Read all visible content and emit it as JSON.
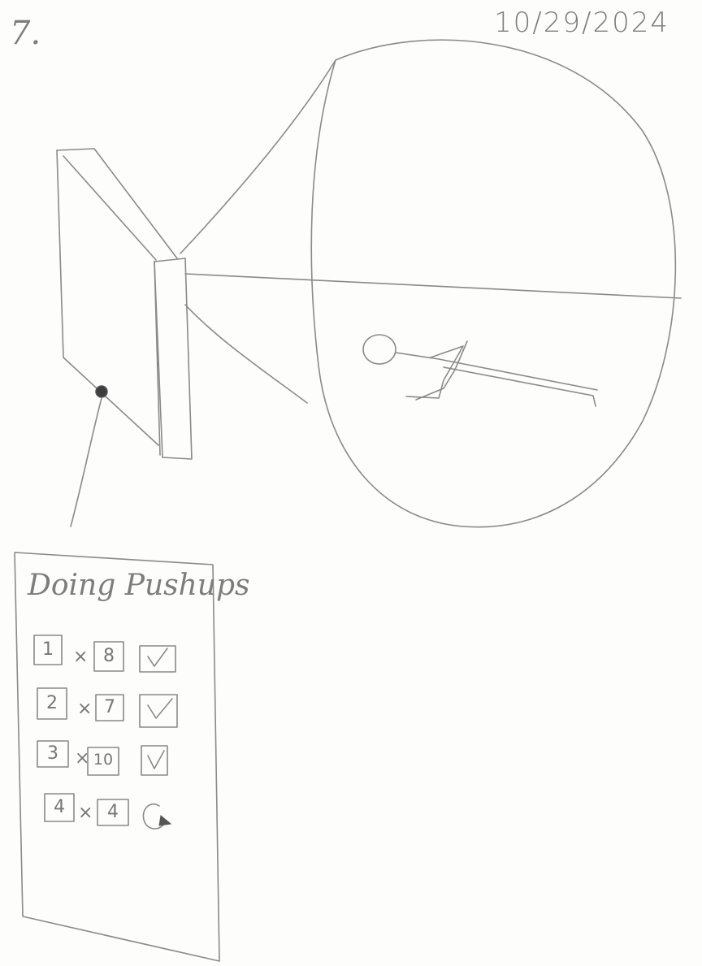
{
  "page_number": "7.",
  "date": "10/29/2024",
  "panel": {
    "title": "Doing Pushups",
    "rows": [
      {
        "set": "1",
        "times": "×",
        "reps": "8",
        "status_icon": "checkmark-icon"
      },
      {
        "set": "2",
        "times": "×",
        "reps": "7",
        "status_icon": "checkmark-icon"
      },
      {
        "set": "3",
        "times": "×",
        "reps": "10",
        "status_icon": "checkmark-icon"
      },
      {
        "set": "4",
        "times": "×",
        "reps": "4",
        "status_icon": "in-progress-icon"
      }
    ]
  }
}
